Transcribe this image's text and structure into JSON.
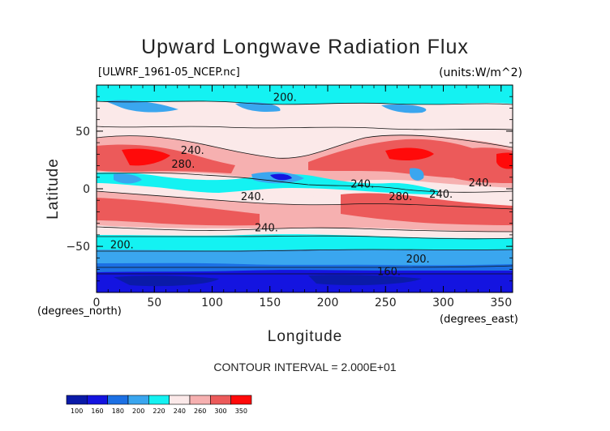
{
  "chart_data": {
    "type": "heatmap",
    "title": "Upward Longwave Radiation Flux",
    "source_label": "[ULWRF_1961-05_NCEP.nc]",
    "units_label": "(units:W/m^2)",
    "xlabel": "Longitude",
    "ylabel": "Latitude",
    "x_unit_label": "(degrees_east)",
    "y_unit_label": "(degrees_north)",
    "xlim": [
      0,
      360
    ],
    "ylim": [
      -90,
      90
    ],
    "x_ticks": [
      0,
      50,
      100,
      150,
      200,
      250,
      300,
      350
    ],
    "y_ticks": [
      -50,
      0,
      50
    ],
    "contour_interval_text": "CONTOUR INTERVAL = 2.000E+01",
    "colorbar": {
      "levels": [
        100,
        160,
        180,
        200,
        220,
        240,
        260,
        300,
        350
      ],
      "colors": [
        "#0a1aa8",
        "#1414e0",
        "#1c70e4",
        "#3aa6ef",
        "#14f2f2",
        "#fbe9e9",
        "#f6b0b0",
        "#ec5a5a",
        "#ff0a0a"
      ]
    },
    "contour_labels": [
      {
        "lon": 163,
        "lat": 79,
        "text": "200."
      },
      {
        "lon": 83,
        "lat": 33,
        "text": "240."
      },
      {
        "lon": 75,
        "lat": 21,
        "text": "280."
      },
      {
        "lon": 135,
        "lat": -7,
        "text": "240."
      },
      {
        "lon": 230,
        "lat": 4,
        "text": "240."
      },
      {
        "lon": 263,
        "lat": -7,
        "text": "280."
      },
      {
        "lon": 298,
        "lat": -5,
        "text": "240."
      },
      {
        "lon": 332,
        "lat": 5,
        "text": "240."
      },
      {
        "lon": 147,
        "lat": -34,
        "text": "240."
      },
      {
        "lon": 22,
        "lat": -49,
        "text": "200."
      },
      {
        "lon": 278,
        "lat": -61,
        "text": "200."
      },
      {
        "lon": 253,
        "lat": -72,
        "text": "160."
      }
    ]
  }
}
